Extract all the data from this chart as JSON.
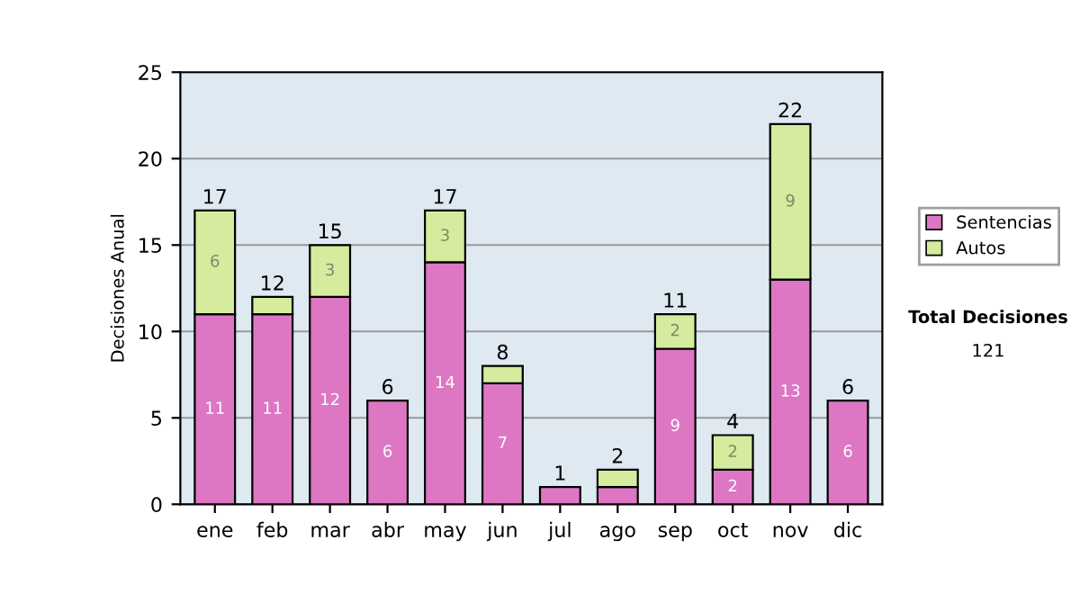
{
  "chart_data": {
    "type": "bar",
    "stacked": true,
    "ylabel": "Decisiones Anual",
    "categories": [
      "ene",
      "feb",
      "mar",
      "abr",
      "may",
      "jun",
      "jul",
      "ago",
      "sep",
      "oct",
      "nov",
      "dic"
    ],
    "series": [
      {
        "name": "Sentencias",
        "color": "#dd77c4",
        "values": [
          11,
          11,
          12,
          6,
          14,
          7,
          1,
          1,
          9,
          2,
          13,
          6
        ],
        "value_labels": [
          "11",
          "11",
          "12",
          "6",
          "14",
          "7",
          null,
          null,
          "9",
          "2",
          "13",
          "6"
        ]
      },
      {
        "name": "Autos",
        "color": "#d5eb9e",
        "values": [
          6,
          1,
          3,
          0,
          3,
          1,
          0,
          1,
          2,
          2,
          9,
          0
        ],
        "value_labels": [
          "6",
          null,
          "3",
          null,
          "3",
          null,
          null,
          null,
          "2",
          "2",
          "9",
          null
        ]
      }
    ],
    "totals": [
      "17",
      "12",
      "15",
      "6",
      "17",
      "8",
      "1",
      "2",
      "11",
      "4",
      "22",
      "6"
    ],
    "ylim": [
      0,
      25
    ],
    "yticks": [
      0,
      5,
      10,
      15,
      20,
      25
    ],
    "grid": "y",
    "legend": "right",
    "annotations": [
      "Total Decisiones",
      "121"
    ]
  }
}
